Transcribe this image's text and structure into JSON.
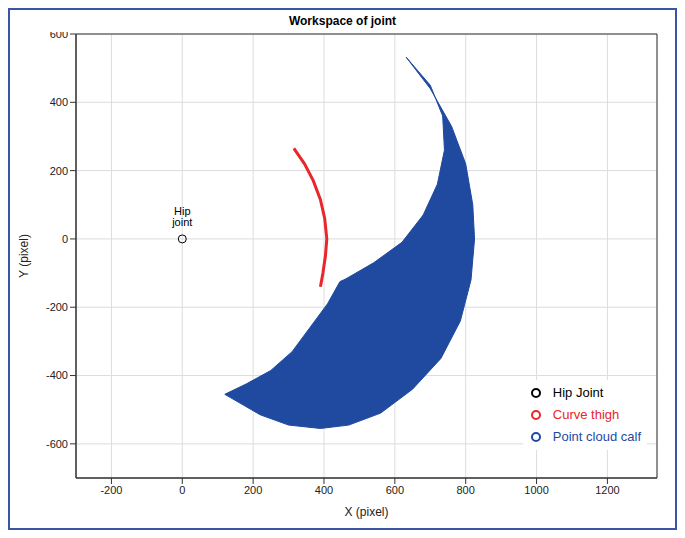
{
  "chart_data": {
    "type": "scatter",
    "title": "Workspace of joint",
    "x_label": "X (pixel)",
    "y_label": "Y (pixel)",
    "xlim": [
      -300,
      1340
    ],
    "ylim": [
      -700,
      600
    ],
    "xticks": [
      -200,
      0,
      200,
      400,
      600,
      800,
      1000,
      1200
    ],
    "yticks": [
      -600,
      -400,
      -200,
      0,
      200,
      400,
      600
    ],
    "grid": true,
    "legend": "lower right",
    "annotations": [
      {
        "text": "Hip joint",
        "x": 0,
        "y": 0
      }
    ],
    "series": [
      {
        "name": "Hip Joint",
        "color": "#000000",
        "type": "scatter",
        "marker": "circle",
        "values": [
          [
            0,
            0
          ]
        ]
      },
      {
        "name": "Curve thigh",
        "color": "#e8262b",
        "type": "line",
        "marker": "none",
        "line_style": "solid",
        "values": [
          [
            315,
            265
          ],
          [
            345,
            220
          ],
          [
            370,
            170
          ],
          [
            390,
            115
          ],
          [
            402,
            60
          ],
          [
            408,
            0
          ],
          [
            404,
            -50
          ],
          [
            397,
            -100
          ],
          [
            390,
            -140
          ]
        ]
      },
      {
        "name": "Point cloud calf",
        "color": "#1f4aa0",
        "type": "area",
        "marker": "none",
        "values": [
          [
            632,
            532
          ],
          [
            700,
            440
          ],
          [
            760,
            330
          ],
          [
            800,
            220
          ],
          [
            820,
            100
          ],
          [
            825,
            0
          ],
          [
            815,
            -120
          ],
          [
            785,
            -240
          ],
          [
            730,
            -350
          ],
          [
            650,
            -440
          ],
          [
            560,
            -510
          ],
          [
            470,
            -545
          ],
          [
            390,
            -555
          ],
          [
            300,
            -545
          ],
          [
            220,
            -515
          ],
          [
            120,
            -455
          ],
          [
            180,
            -425
          ],
          [
            250,
            -385
          ],
          [
            310,
            -330
          ],
          [
            360,
            -260
          ],
          [
            410,
            -190
          ],
          [
            445,
            -125
          ],
          [
            460,
            -118
          ],
          [
            540,
            -70
          ],
          [
            620,
            -10
          ],
          [
            680,
            70
          ],
          [
            720,
            160
          ],
          [
            740,
            260
          ],
          [
            735,
            360
          ],
          [
            700,
            450
          ],
          [
            632,
            532
          ]
        ]
      }
    ]
  }
}
